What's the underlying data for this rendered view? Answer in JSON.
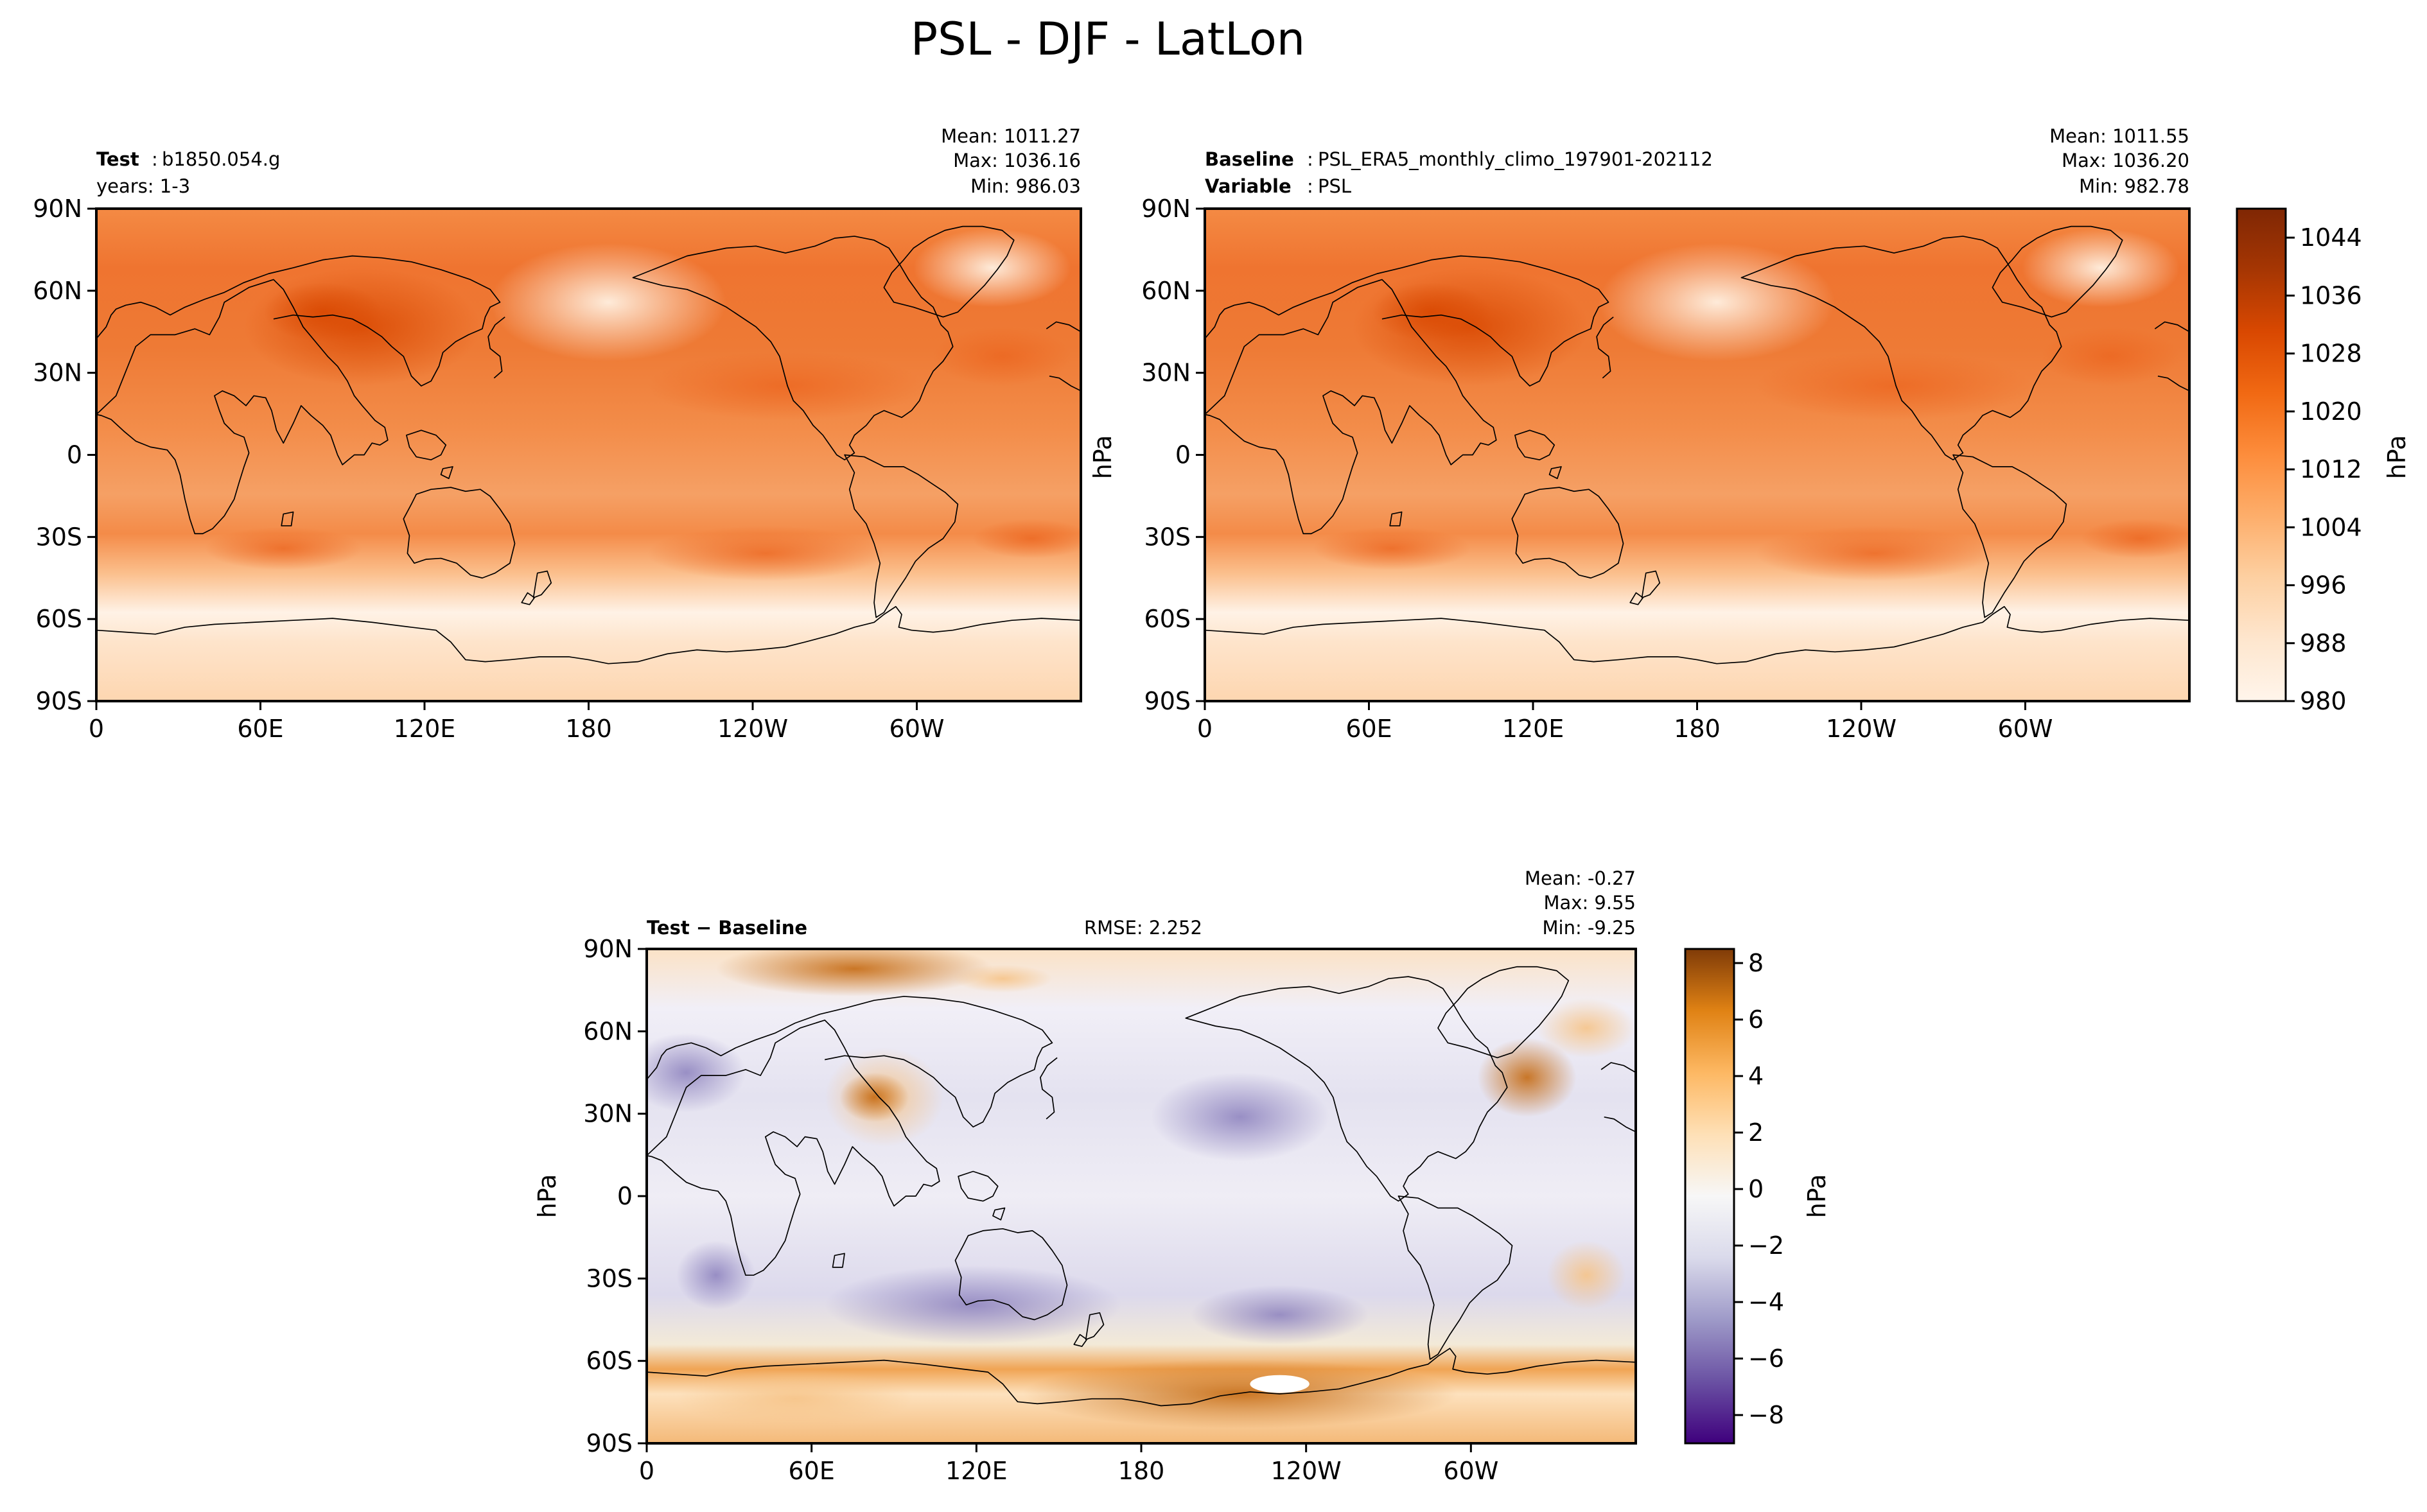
{
  "figure_title": "PSL - DJF - LatLon",
  "colors": {
    "orange_ramp": [
      "#fff5eb",
      "#fee6ce",
      "#fdd0a2",
      "#fdae6b",
      "#fd8d3c",
      "#f16913",
      "#d94801",
      "#a63603",
      "#7f2704"
    ],
    "diverging_ramp": [
      "#3f007d",
      "#6a51a3",
      "#9e9ac8",
      "#dadaeb",
      "#f7f7f7",
      "#fee0b6",
      "#fdb863",
      "#e08214",
      "#7f3b08"
    ],
    "coastline": "#000000"
  },
  "chart_data": [
    {
      "type": "heatmap",
      "panel": "test",
      "header_bold": "Test",
      "header_sep": ":",
      "header_value": "b1850.054.g",
      "header_line2": "years: 1-3",
      "stats": [
        "Mean: 1011.27",
        "Max: 1036.16",
        "Min: 986.03"
      ],
      "xticks": [
        "0",
        "60E",
        "120E",
        "180",
        "120W",
        "60W"
      ],
      "yticks": [
        "90N",
        "60N",
        "30N",
        "0",
        "30S",
        "60S",
        "90S"
      ],
      "ylabel": "",
      "xlim": [
        0,
        360
      ],
      "ylim": [
        -90,
        90
      ]
    },
    {
      "type": "heatmap",
      "panel": "baseline",
      "header_bold": "Baseline",
      "header_sep": ":",
      "header_value": "PSL_ERA5_monthly_climo_197901-202112",
      "header_line2_bold": "Variable",
      "header_line2_sep": ":",
      "header_line2_value": "PSL",
      "stats": [
        "Mean: 1011.55",
        "Max: 1036.20",
        "Min: 982.78"
      ],
      "xticks": [
        "0",
        "60E",
        "120E",
        "180",
        "120W",
        "60W"
      ],
      "yticks": [
        "90N",
        "60N",
        "30N",
        "0",
        "30S",
        "60S",
        "90S"
      ],
      "ylabel": "hPa",
      "xlim": [
        0,
        360
      ],
      "ylim": [
        -90,
        90
      ]
    },
    {
      "type": "heatmap",
      "panel": "difference",
      "header_bold": "Test − Baseline",
      "rmse_label": "RMSE: 2.252",
      "stats": [
        "Mean: -0.27",
        "Max:  9.55",
        "Min: -9.25"
      ],
      "xticks": [
        "0",
        "60E",
        "120E",
        "180",
        "120W",
        "60W"
      ],
      "yticks": [
        "90N",
        "60N",
        "30N",
        "0",
        "30S",
        "60S",
        "90S"
      ],
      "ylabel": "hPa",
      "xlim": [
        0,
        360
      ],
      "ylim": [
        -90,
        90
      ]
    }
  ],
  "colorbars": {
    "psl": {
      "label": "hPa",
      "range": [
        980,
        1048
      ],
      "ticks": [
        980,
        988,
        996,
        1004,
        1012,
        1020,
        1028,
        1036,
        1044
      ]
    },
    "diff": {
      "label": "hPa",
      "range": [
        -9,
        8.5
      ],
      "ticks": [
        -8,
        -6,
        -4,
        -2,
        0,
        2,
        4,
        6,
        8
      ]
    }
  }
}
